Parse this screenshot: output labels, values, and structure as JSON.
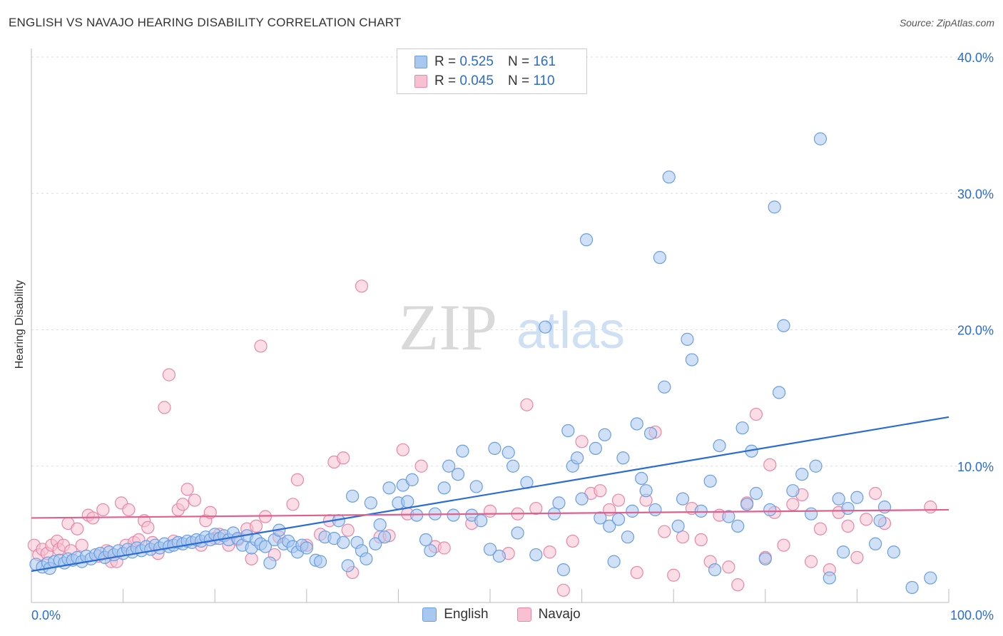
{
  "title": "ENGLISH VS NAVAJO HEARING DISABILITY CORRELATION CHART",
  "source": "Source: ZipAtlas.com",
  "watermark": {
    "zip": "ZIP",
    "atlas": "atlas"
  },
  "legend_top": {
    "rows": [
      {
        "r_label": "R =",
        "r_value": "0.525",
        "n_label": "N =",
        "n_value": "161",
        "color": "#a9c8f0",
        "border": "#6a9ee0"
      },
      {
        "r_label": "R =",
        "r_value": "0.045",
        "n_label": "N =",
        "n_value": "110",
        "color": "#f7c1d2",
        "border": "#e887a8"
      }
    ]
  },
  "legend_bottom": {
    "english": "English",
    "navajo": "Navajo"
  },
  "chart_data": {
    "type": "scatter",
    "title": "ENGLISH VS NAVAJO HEARING DISABILITY CORRELATION CHART",
    "xlabel": "",
    "ylabel": "Hearing Disability",
    "xlim": [
      0,
      100
    ],
    "ylim": [
      0,
      40
    ],
    "x_tick_labels": [
      "0.0%",
      "100.0%"
    ],
    "y_tick_labels": [
      "10.0%",
      "20.0%",
      "30.0%",
      "40.0%"
    ],
    "y_ticks": [
      10,
      20,
      30,
      40
    ],
    "grid": true,
    "series": [
      {
        "name": "English",
        "color": "#6a9ee0",
        "fill": "#a9c8f0",
        "trend": {
          "x": [
            0,
            100
          ],
          "y": [
            2.3,
            13.6
          ]
        },
        "points": [
          [
            0.5,
            2.8
          ],
          [
            1.2,
            2.6
          ],
          [
            1.8,
            2.9
          ],
          [
            2.0,
            2.5
          ],
          [
            2.5,
            3.0
          ],
          [
            3.1,
            3.1
          ],
          [
            3.6,
            2.9
          ],
          [
            4.0,
            3.2
          ],
          [
            4.5,
            3.1
          ],
          [
            5.0,
            3.3
          ],
          [
            5.5,
            3.0
          ],
          [
            6.0,
            3.4
          ],
          [
            6.5,
            3.2
          ],
          [
            7.0,
            3.5
          ],
          [
            7.5,
            3.6
          ],
          [
            8.0,
            3.3
          ],
          [
            8.5,
            3.7
          ],
          [
            9.0,
            3.5
          ],
          [
            9.5,
            3.8
          ],
          [
            10.0,
            3.6
          ],
          [
            10.5,
            3.9
          ],
          [
            11.0,
            3.7
          ],
          [
            11.5,
            4.0
          ],
          [
            12.0,
            3.8
          ],
          [
            12.5,
            4.1
          ],
          [
            13.0,
            3.9
          ],
          [
            13.5,
            4.2
          ],
          [
            14.0,
            4.0
          ],
          [
            14.5,
            4.3
          ],
          [
            15.0,
            4.1
          ],
          [
            15.5,
            4.2
          ],
          [
            16.0,
            4.4
          ],
          [
            16.5,
            4.3
          ],
          [
            17.0,
            4.5
          ],
          [
            17.5,
            4.4
          ],
          [
            18.0,
            4.6
          ],
          [
            18.5,
            4.5
          ],
          [
            19.0,
            4.8
          ],
          [
            19.5,
            4.6
          ],
          [
            20.0,
            5.0
          ],
          [
            20.5,
            4.7
          ],
          [
            21.0,
            4.9
          ],
          [
            21.5,
            4.6
          ],
          [
            22.0,
            5.1
          ],
          [
            22.5,
            4.7
          ],
          [
            23.0,
            4.2
          ],
          [
            23.5,
            4.9
          ],
          [
            24.0,
            4.0
          ],
          [
            24.5,
            4.6
          ],
          [
            25.0,
            4.3
          ],
          [
            25.5,
            4.1
          ],
          [
            26.0,
            2.9
          ],
          [
            26.5,
            4.6
          ],
          [
            27.0,
            5.3
          ],
          [
            27.5,
            4.3
          ],
          [
            28.0,
            4.5
          ],
          [
            28.5,
            4.1
          ],
          [
            29.0,
            3.7
          ],
          [
            29.5,
            4.2
          ],
          [
            30.0,
            4.0
          ],
          [
            31.0,
            3.1
          ],
          [
            31.5,
            3.0
          ],
          [
            32.0,
            4.8
          ],
          [
            33.0,
            4.7
          ],
          [
            33.5,
            6.0
          ],
          [
            34.0,
            4.4
          ],
          [
            34.5,
            2.7
          ],
          [
            35.0,
            7.8
          ],
          [
            35.5,
            4.4
          ],
          [
            36.0,
            3.8
          ],
          [
            36.5,
            3.2
          ],
          [
            37.0,
            7.3
          ],
          [
            37.5,
            4.3
          ],
          [
            38.0,
            5.7
          ],
          [
            38.5,
            4.8
          ],
          [
            39.0,
            8.4
          ],
          [
            40.0,
            7.3
          ],
          [
            40.5,
            8.6
          ],
          [
            41.0,
            7.4
          ],
          [
            41.5,
            9.0
          ],
          [
            42.0,
            6.4
          ],
          [
            43.0,
            4.6
          ],
          [
            43.5,
            3.8
          ],
          [
            44.0,
            6.5
          ],
          [
            45.0,
            8.4
          ],
          [
            45.5,
            10.0
          ],
          [
            46.0,
            6.4
          ],
          [
            46.5,
            9.4
          ],
          [
            47.0,
            11.1
          ],
          [
            48.0,
            6.4
          ],
          [
            48.5,
            8.5
          ],
          [
            49.0,
            6.0
          ],
          [
            50.0,
            3.9
          ],
          [
            50.5,
            11.3
          ],
          [
            51.0,
            3.4
          ],
          [
            52.0,
            11.0
          ],
          [
            52.5,
            10.0
          ],
          [
            53.0,
            5.1
          ],
          [
            54.0,
            8.8
          ],
          [
            55.0,
            3.5
          ],
          [
            56.0,
            20.2
          ],
          [
            57.0,
            6.5
          ],
          [
            58.0,
            2.4
          ],
          [
            57.5,
            7.3
          ],
          [
            58.5,
            12.6
          ],
          [
            59.0,
            10.0
          ],
          [
            59.5,
            10.6
          ],
          [
            60.0,
            7.6
          ],
          [
            60.5,
            26.6
          ],
          [
            61.5,
            11.3
          ],
          [
            62.0,
            6.2
          ],
          [
            62.5,
            12.3
          ],
          [
            63.0,
            5.6
          ],
          [
            63.5,
            3.0
          ],
          [
            64.0,
            6.1
          ],
          [
            64.5,
            10.6
          ],
          [
            65.0,
            4.8
          ],
          [
            65.5,
            6.7
          ],
          [
            66.0,
            13.1
          ],
          [
            66.5,
            9.1
          ],
          [
            67.0,
            8.2
          ],
          [
            67.5,
            12.4
          ],
          [
            68.0,
            6.8
          ],
          [
            68.5,
            25.3
          ],
          [
            69.0,
            15.8
          ],
          [
            69.5,
            31.2
          ],
          [
            70.5,
            5.6
          ],
          [
            71.0,
            7.6
          ],
          [
            71.5,
            19.3
          ],
          [
            72.0,
            17.8
          ],
          [
            73.0,
            6.7
          ],
          [
            74.0,
            8.9
          ],
          [
            74.5,
            2.4
          ],
          [
            75.0,
            11.5
          ],
          [
            76.0,
            6.3
          ],
          [
            77.0,
            5.6
          ],
          [
            77.5,
            12.8
          ],
          [
            78.0,
            7.2
          ],
          [
            78.5,
            11.1
          ],
          [
            79.0,
            8.0
          ],
          [
            80.0,
            3.2
          ],
          [
            80.5,
            6.8
          ],
          [
            81.0,
            29.0
          ],
          [
            81.5,
            15.4
          ],
          [
            82.0,
            20.3
          ],
          [
            83.0,
            8.2
          ],
          [
            84.0,
            9.4
          ],
          [
            85.0,
            6.5
          ],
          [
            85.5,
            10.0
          ],
          [
            86.0,
            34.0
          ],
          [
            87.0,
            1.8
          ],
          [
            88.0,
            7.6
          ],
          [
            89.0,
            6.9
          ],
          [
            90.0,
            7.7
          ],
          [
            92.0,
            4.3
          ],
          [
            94.0,
            3.7
          ],
          [
            96.0,
            1.1
          ],
          [
            98.0,
            1.8
          ],
          [
            92.5,
            6.0
          ],
          [
            88.5,
            3.7
          ],
          [
            93.0,
            7.0
          ]
        ]
      },
      {
        "name": "Navajo",
        "color": "#e887a8",
        "fill": "#f7c1d2",
        "trend": {
          "x": [
            0,
            100
          ],
          "y": [
            6.2,
            6.8
          ]
        },
        "points": [
          [
            0.3,
            4.2
          ],
          [
            0.8,
            3.5
          ],
          [
            1.2,
            3.9
          ],
          [
            1.7,
            3.6
          ],
          [
            2.2,
            4.2
          ],
          [
            2.8,
            4.5
          ],
          [
            3.0,
            3.9
          ],
          [
            3.5,
            4.2
          ],
          [
            4.0,
            5.8
          ],
          [
            4.3,
            3.8
          ],
          [
            5.0,
            5.4
          ],
          [
            5.5,
            4.2
          ],
          [
            6.2,
            6.4
          ],
          [
            6.7,
            6.2
          ],
          [
            7.3,
            3.4
          ],
          [
            7.8,
            6.8
          ],
          [
            8.2,
            3.8
          ],
          [
            8.7,
            3.0
          ],
          [
            9.3,
            3.0
          ],
          [
            9.8,
            7.3
          ],
          [
            10.3,
            4.2
          ],
          [
            10.6,
            6.8
          ],
          [
            11.2,
            4.4
          ],
          [
            11.7,
            4.6
          ],
          [
            12.3,
            6.0
          ],
          [
            12.7,
            5.5
          ],
          [
            13.2,
            4.4
          ],
          [
            13.8,
            3.6
          ],
          [
            14.5,
            14.3
          ],
          [
            15.0,
            16.7
          ],
          [
            15.5,
            4.5
          ],
          [
            16.0,
            6.8
          ],
          [
            16.5,
            7.2
          ],
          [
            17.0,
            8.3
          ],
          [
            17.8,
            7.5
          ],
          [
            18.5,
            4.2
          ],
          [
            19.0,
            6.0
          ],
          [
            19.5,
            6.6
          ],
          [
            20.0,
            4.7
          ],
          [
            20.5,
            5.0
          ],
          [
            21.5,
            4.2
          ],
          [
            22.5,
            4.6
          ],
          [
            23.5,
            5.4
          ],
          [
            24.0,
            3.2
          ],
          [
            24.5,
            5.6
          ],
          [
            25.0,
            18.8
          ],
          [
            25.5,
            6.3
          ],
          [
            26.5,
            3.5
          ],
          [
            27.0,
            4.8
          ],
          [
            28.5,
            7.2
          ],
          [
            29.0,
            9.0
          ],
          [
            30.0,
            4.2
          ],
          [
            31.5,
            5.0
          ],
          [
            32.5,
            6.0
          ],
          [
            33.0,
            10.3
          ],
          [
            34.0,
            10.6
          ],
          [
            34.5,
            5.3
          ],
          [
            35.0,
            2.2
          ],
          [
            36.0,
            23.2
          ],
          [
            38.0,
            4.8
          ],
          [
            39.0,
            4.9
          ],
          [
            40.5,
            11.2
          ],
          [
            41.0,
            6.5
          ],
          [
            42.5,
            10.0
          ],
          [
            44.0,
            4.1
          ],
          [
            45.0,
            4.0
          ],
          [
            48.0,
            5.8
          ],
          [
            50.0,
            6.7
          ],
          [
            52.0,
            3.6
          ],
          [
            53.0,
            6.5
          ],
          [
            54.0,
            14.5
          ],
          [
            55.0,
            6.9
          ],
          [
            56.5,
            3.7
          ],
          [
            58.0,
            0.9
          ],
          [
            59.0,
            4.5
          ],
          [
            60.0,
            11.8
          ],
          [
            61.0,
            8.0
          ],
          [
            62.0,
            8.2
          ],
          [
            63.0,
            6.8
          ],
          [
            64.0,
            7.5
          ],
          [
            66.0,
            2.2
          ],
          [
            67.0,
            7.5
          ],
          [
            68.0,
            12.5
          ],
          [
            69.0,
            5.2
          ],
          [
            70.0,
            2.0
          ],
          [
            71.0,
            4.8
          ],
          [
            72.0,
            6.9
          ],
          [
            73.0,
            4.6
          ],
          [
            74.0,
            3.0
          ],
          [
            75.0,
            6.4
          ],
          [
            76.0,
            2.6
          ],
          [
            77.0,
            1.3
          ],
          [
            78.0,
            7.3
          ],
          [
            79.0,
            13.8
          ],
          [
            80.0,
            3.3
          ],
          [
            80.5,
            10.1
          ],
          [
            81.0,
            6.6
          ],
          [
            82.0,
            4.2
          ],
          [
            83.0,
            7.2
          ],
          [
            84.0,
            7.9
          ],
          [
            85.0,
            3.0
          ],
          [
            86.0,
            5.4
          ],
          [
            87.0,
            2.4
          ],
          [
            88.0,
            6.6
          ],
          [
            89.0,
            5.6
          ],
          [
            90.0,
            3.3
          ],
          [
            91.0,
            6.1
          ],
          [
            92.0,
            8.0
          ],
          [
            93.0,
            5.8
          ],
          [
            98.0,
            7.0
          ]
        ]
      }
    ]
  }
}
